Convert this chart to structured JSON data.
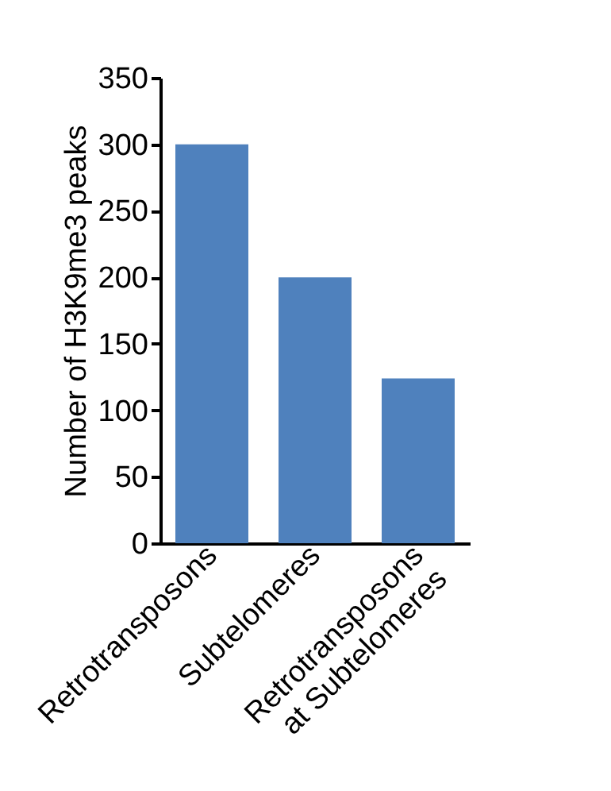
{
  "chart_data": {
    "type": "bar",
    "ylabel": "Number of H3K9me3 peaks",
    "categories": [
      "Retrotransposons",
      "Subtelomeres",
      "Retrotransposons\nat Subtelomeres"
    ],
    "values": [
      300,
      200,
      124
    ],
    "color": "#4f81bd",
    "ylim": [
      0,
      350
    ],
    "yticks": [
      0,
      50,
      100,
      150,
      200,
      250,
      300,
      350
    ],
    "grid": false
  }
}
